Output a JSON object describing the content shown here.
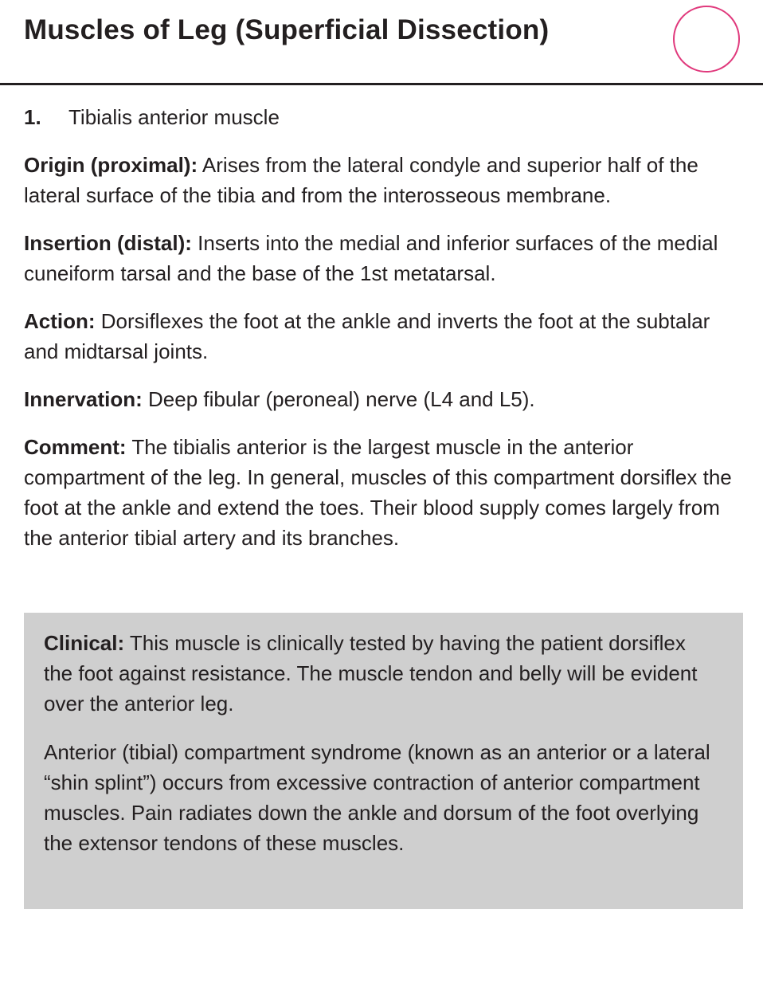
{
  "header": {
    "title": "Muscles of Leg (Superficial Dissection)"
  },
  "item": {
    "number": "1.",
    "name": "Tibialis anterior muscle"
  },
  "entries": {
    "origin": {
      "label": "Origin (proximal):",
      "text": "Arises from the lateral condyle and superior half of the lateral surface of the tibia and from the interosseous membrane."
    },
    "insertion": {
      "label": "Insertion (distal):",
      "text": "Inserts into the medial and inferior surfaces of the medial cuneiform tarsal and the base of the 1st metatarsal."
    },
    "action": {
      "label": "Action:",
      "text": "Dorsiflexes the foot at the ankle and inverts the foot at the subtalar and midtarsal joints."
    },
    "innervation": {
      "label": "Innervation:",
      "text": "Deep fibular (peroneal) nerve (L4 and L5)."
    },
    "comment": {
      "label": "Comment:",
      "text": "The tibialis anterior is the largest muscle in the anterior compartment of the leg. In general, muscles of this compartment dorsiflex the foot at the ankle and extend the toes. Their blood supply comes largely from the anterior tibial artery and its branches."
    }
  },
  "clinical": {
    "label": "Clinical:",
    "text1": "This muscle is clinically tested by having the patient dorsiflex the foot against resistance. The muscle tendon and belly will be evident over the anterior leg.",
    "text2": "Anterior (tibial) compartment syndrome (known as an anterior or a lateral “shin splint”) occurs from excessive contraction of anterior compartment muscles. Pain radiates down the ankle and dorsum of the foot overlying the extensor tendons of these muscles."
  },
  "colors": {
    "circle_accent": "#e0397c",
    "clinical_box": "#cfcfcf",
    "text": "#231f20"
  }
}
